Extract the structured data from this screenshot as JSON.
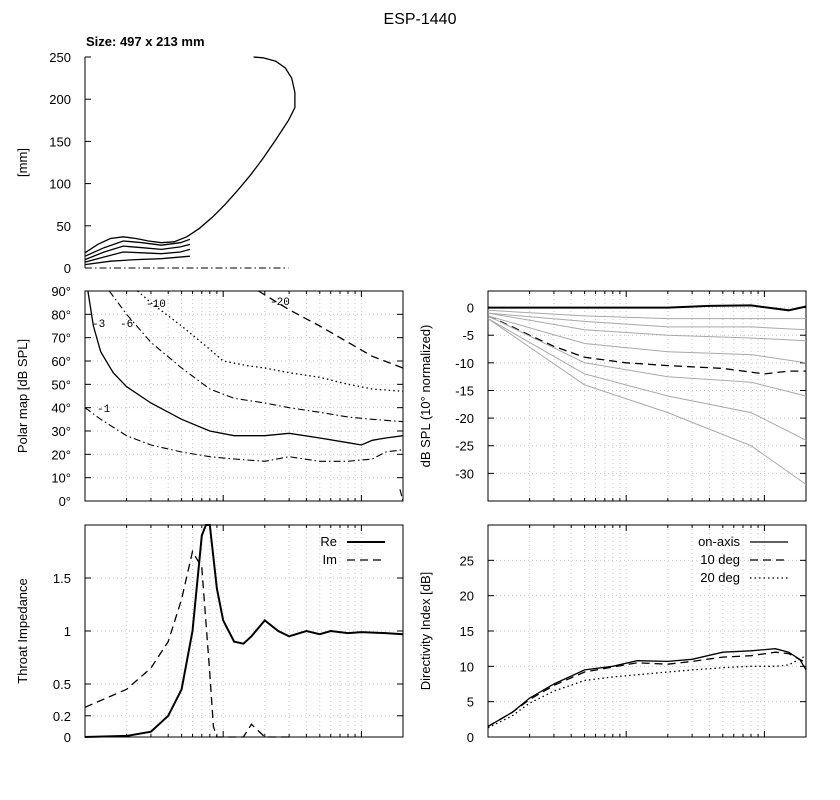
{
  "figure_title": "ESP-1440",
  "size_label": "Size: 497 x 213 mm",
  "chart_data": [
    {
      "id": "profile",
      "type": "line",
      "title": "",
      "xlabel": "",
      "ylabel": "[mm]",
      "ylim": [
        0,
        250
      ],
      "xlim": [
        0,
        500
      ],
      "yticks": [
        0,
        50,
        100,
        150,
        200,
        250
      ],
      "grid": false,
      "series": [
        {
          "style": "solid",
          "x": [
            0,
            20,
            40,
            60,
            80,
            100,
            120,
            140,
            160,
            180,
            200,
            220,
            240,
            260,
            280,
            300,
            320,
            330,
            330,
            325,
            315,
            300,
            280,
            265
          ],
          "y": [
            18,
            28,
            35,
            37,
            35,
            32,
            30,
            31,
            37,
            47,
            60,
            75,
            92,
            110,
            130,
            152,
            175,
            190,
            208,
            225,
            237,
            245,
            249,
            250
          ]
        },
        {
          "style": "solid",
          "x": [
            0,
            30,
            60,
            90,
            120,
            150,
            165
          ],
          "y": [
            14,
            24,
            32,
            30,
            27,
            30,
            34
          ]
        },
        {
          "style": "solid",
          "x": [
            0,
            30,
            60,
            90,
            120,
            150,
            165
          ],
          "y": [
            10,
            19,
            26,
            24,
            22,
            25,
            28
          ]
        },
        {
          "style": "solid",
          "x": [
            0,
            30,
            60,
            90,
            120,
            150,
            165
          ],
          "y": [
            7,
            13,
            19,
            18,
            17,
            19,
            22
          ]
        },
        {
          "style": "solid",
          "x": [
            0,
            40,
            80,
            120,
            165
          ],
          "y": [
            4,
            8,
            10,
            11,
            14
          ]
        },
        {
          "style": "dashdot",
          "x": [
            0,
            320
          ],
          "y": [
            0,
            0
          ]
        }
      ]
    },
    {
      "id": "polar_map",
      "type": "line",
      "title": "",
      "xlabel": "",
      "ylabel": "Polar map [dB SPL]",
      "xscale": "log",
      "xlim": [
        100,
        20000
      ],
      "ylim": [
        0,
        90
      ],
      "yticks": [
        0,
        10,
        20,
        30,
        40,
        50,
        60,
        70,
        80,
        90
      ],
      "ytick_labels": [
        "0°",
        "10°",
        "20°",
        "30°",
        "40°",
        "50°",
        "60°",
        "70°",
        "80°",
        "90°"
      ],
      "grid": true,
      "contours": [
        {
          "label": "-1",
          "style": "dashdot",
          "x": [
            100,
            130,
            200,
            300,
            500,
            800,
            1200,
            2000,
            3000,
            5000,
            8000,
            12000,
            15000,
            20000
          ],
          "y": [
            40,
            35,
            28,
            24,
            21,
            19,
            18,
            17,
            19,
            17,
            17,
            18,
            21,
            22
          ]
        },
        {
          "label": "-3",
          "style": "solid",
          "x": [
            105,
            115,
            130,
            160,
            200,
            300,
            500,
            800,
            1200,
            2000,
            3000,
            5000,
            8000,
            10000,
            12000,
            15000,
            20000
          ],
          "y": [
            90,
            75,
            64,
            55,
            49,
            42,
            35,
            30,
            28,
            28,
            29,
            27,
            25,
            24,
            26,
            27,
            28
          ]
        },
        {
          "label": "-6",
          "style": "dashdot",
          "x": [
            150,
            200,
            300,
            500,
            800,
            1200,
            2000,
            3000,
            5000,
            8000,
            12000,
            20000
          ],
          "y": [
            90,
            80,
            68,
            57,
            48,
            44,
            42,
            40,
            38,
            36,
            35,
            34
          ]
        },
        {
          "label": "-10",
          "style": "dotted",
          "x": [
            240,
            300,
            500,
            800,
            1000,
            1500,
            2000,
            3000,
            5000,
            8000,
            12000,
            20000
          ],
          "y": [
            90,
            85,
            75,
            65,
            60,
            58,
            57,
            55,
            53,
            50,
            48,
            47
          ]
        },
        {
          "label": "-20",
          "style": "dashed",
          "x": [
            1800,
            3000,
            5000,
            8000,
            12000,
            20000
          ],
          "y": [
            90,
            82,
            75,
            68,
            62,
            57
          ]
        },
        {
          "label": "",
          "style": "dashdot",
          "x": [
            19000,
            20000
          ],
          "y": [
            5,
            0
          ]
        }
      ]
    },
    {
      "id": "normalized_spl",
      "type": "line",
      "title": "",
      "xlabel": "",
      "ylabel": "dB SPL (10° normalized)",
      "xscale": "log",
      "xlim": [
        100,
        20000
      ],
      "ylim": [
        -35,
        3
      ],
      "yticks": [
        0,
        -5,
        -10,
        -15,
        -20,
        -25,
        -30
      ],
      "grid": true,
      "series": [
        {
          "style": "thick",
          "x": [
            100,
            200,
            500,
            1000,
            2000,
            4000,
            8000,
            15000,
            20000
          ],
          "y": [
            0,
            0,
            0,
            0,
            0,
            0.3,
            0.4,
            -0.5,
            0.2
          ]
        },
        {
          "style": "dashed",
          "x": [
            100,
            150,
            200,
            300,
            500,
            1000,
            2000,
            5000,
            10000,
            15000,
            20000
          ],
          "y": [
            -1.5,
            -3.5,
            -5,
            -7,
            -9,
            -10,
            -10.5,
            -11,
            -12,
            -11.5,
            -11.5
          ]
        },
        {
          "style": "gray",
          "x": [
            100,
            500,
            2000,
            8000,
            20000
          ],
          "y": [
            -0.5,
            -1.5,
            -2,
            -2,
            -2
          ]
        },
        {
          "style": "gray",
          "x": [
            100,
            500,
            2000,
            8000,
            20000
          ],
          "y": [
            -1,
            -2.5,
            -3.5,
            -3.5,
            -4
          ]
        },
        {
          "style": "gray",
          "x": [
            100,
            500,
            2000,
            8000,
            20000
          ],
          "y": [
            -1,
            -4,
            -5,
            -5.5,
            -6
          ]
        },
        {
          "style": "gray",
          "x": [
            100,
            500,
            2000,
            8000,
            20000
          ],
          "y": [
            -1.5,
            -6.5,
            -8,
            -8.5,
            -10
          ]
        },
        {
          "style": "gray",
          "x": [
            100,
            500,
            2000,
            8000,
            20000
          ],
          "y": [
            -1.5,
            -10,
            -12.5,
            -13.5,
            -16
          ]
        },
        {
          "style": "gray",
          "x": [
            100,
            500,
            2000,
            8000,
            20000
          ],
          "y": [
            -2,
            -12,
            -16,
            -19,
            -24
          ]
        },
        {
          "style": "gray",
          "x": [
            100,
            500,
            2000,
            8000,
            20000
          ],
          "y": [
            -2,
            -14,
            -19,
            -25,
            -32
          ]
        }
      ]
    },
    {
      "id": "throat_impedance",
      "type": "line",
      "title": "",
      "xlabel": "",
      "ylabel": "Throat Impedance",
      "xscale": "log",
      "xlim": [
        100,
        20000
      ],
      "ylim": [
        0,
        2
      ],
      "yticks": [
        0,
        0.2,
        0.5,
        1,
        1.5
      ],
      "ytick_labels": [
        "0",
        "0.2",
        "0.5",
        "1",
        "1.5"
      ],
      "grid": true,
      "legend": "top-right",
      "series": [
        {
          "name": "Re",
          "style": "thick",
          "x": [
            100,
            200,
            300,
            400,
            500,
            600,
            700,
            750,
            800,
            900,
            1000,
            1200,
            1400,
            1600,
            2000,
            2500,
            3000,
            4000,
            5000,
            6000,
            8000,
            10000,
            15000,
            20000
          ],
          "y": [
            0,
            0.01,
            0.05,
            0.2,
            0.45,
            1.0,
            1.9,
            2.0,
            2.0,
            1.4,
            1.1,
            0.9,
            0.88,
            0.95,
            1.1,
            1.0,
            0.95,
            1.0,
            0.97,
            1.0,
            0.98,
            0.99,
            0.98,
            0.97
          ]
        },
        {
          "name": "Im",
          "style": "dashed",
          "x": [
            100,
            200,
            300,
            400,
            500,
            600,
            700,
            800,
            850,
            900,
            1400,
            1600,
            2000,
            3000
          ],
          "y": [
            0.28,
            0.45,
            0.65,
            0.9,
            1.3,
            1.75,
            1.6,
            0.6,
            0.1,
            0,
            0,
            0.12,
            0,
            0
          ]
        }
      ]
    },
    {
      "id": "directivity_index",
      "type": "line",
      "title": "",
      "xlabel": "",
      "ylabel": "Directivity Index [dB]",
      "xscale": "log",
      "xlim": [
        100,
        20000
      ],
      "ylim": [
        0,
        30
      ],
      "yticks": [
        0,
        5,
        10,
        15,
        20,
        25
      ],
      "grid": true,
      "legend": "top-right",
      "series": [
        {
          "name": "on-axis",
          "style": "solid",
          "x": [
            100,
            150,
            200,
            300,
            500,
            800,
            1200,
            2000,
            3000,
            5000,
            8000,
            12000,
            15000,
            18000,
            20000
          ],
          "y": [
            1.5,
            3.5,
            5.5,
            7.5,
            9.5,
            10,
            10.8,
            10.7,
            11,
            12,
            12.2,
            12.5,
            12,
            11,
            9.5
          ]
        },
        {
          "name": "10 deg",
          "style": "dashed",
          "x": [
            100,
            150,
            200,
            300,
            500,
            800,
            1200,
            2000,
            3000,
            5000,
            8000,
            12000,
            15000,
            20000
          ],
          "y": [
            1.5,
            3.5,
            5.3,
            7.3,
            9.2,
            9.9,
            10.5,
            10.3,
            10.7,
            11.3,
            11.5,
            12,
            11.8,
            10.5
          ]
        },
        {
          "name": "20 deg",
          "style": "dotted",
          "x": [
            100,
            150,
            200,
            300,
            500,
            800,
            1200,
            2000,
            3000,
            5000,
            8000,
            12000,
            15000,
            20000
          ],
          "y": [
            1.3,
            3,
            4.8,
            6.5,
            8,
            8.5,
            8.8,
            9.2,
            9.5,
            9.8,
            10,
            10,
            10.2,
            11.5
          ]
        }
      ]
    }
  ]
}
